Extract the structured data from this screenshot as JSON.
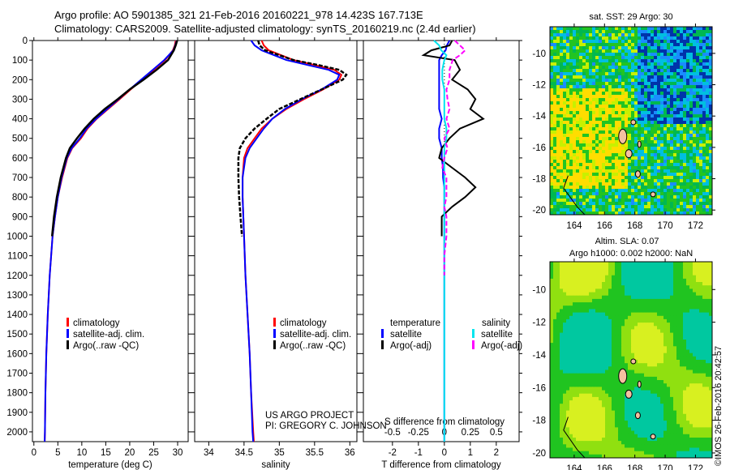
{
  "title": {
    "line1": "Argo profile: AO 5901385_321 21-Feb-2016 20160221_978 14.423S 167.713E",
    "line2": "Climatology: CARS2009. Satellite-adjusted climatology: synTS_20160219.nc (2.4d earlier)"
  },
  "credit": "©IMOS 26-Feb-2016 20:42:57",
  "project": {
    "line1": "US ARGO PROJECT",
    "line2": "PI: GREGORY C. JOHNSON"
  },
  "colors": {
    "climatology": "#ff0000",
    "satellite": "#0000ff",
    "argo": "#000000",
    "sal_satellite": "#00e5ee",
    "sal_argo": "#ff00ff"
  },
  "chart_data": [
    {
      "type": "line",
      "name": "temperature",
      "xlabel": "temperature (deg C)",
      "ylabel": "",
      "xlim": [
        -0.3,
        32.2
      ],
      "ylim": [
        2050,
        0
      ],
      "xticks": [
        0,
        5,
        10,
        15,
        20,
        25,
        30
      ],
      "yticks": [
        0,
        100,
        200,
        300,
        400,
        500,
        600,
        700,
        800,
        900,
        1000,
        1100,
        1200,
        1300,
        1400,
        1500,
        1600,
        1700,
        1800,
        1900,
        2000
      ],
      "legend": [
        "climatology",
        "satellite-adj. clim.",
        "Argo(..raw -QC)"
      ],
      "depth": [
        0,
        25,
        50,
        100,
        150,
        200,
        250,
        300,
        350,
        400,
        450,
        500,
        550,
        600,
        700,
        800,
        900,
        1000,
        1200,
        1400,
        1600,
        1800,
        2000,
        2050
      ],
      "series": [
        {
          "name": "climatology",
          "values": [
            29.6,
            29.4,
            29.0,
            27.4,
            25.0,
            22.6,
            20.2,
            17.9,
            15.5,
            13.1,
            11.2,
            9.8,
            8.0,
            7.0,
            5.9,
            5.0,
            4.4,
            3.9,
            3.3,
            2.9,
            2.6,
            2.4,
            2.3,
            2.25
          ]
        },
        {
          "name": "satellite-adj. clim.",
          "values": [
            29.8,
            29.5,
            29.1,
            27.2,
            24.8,
            22.4,
            20.0,
            17.7,
            15.3,
            13.0,
            11.0,
            9.6,
            7.9,
            6.9,
            5.8,
            5.0,
            4.4,
            3.9,
            3.3,
            2.9,
            2.6,
            2.4,
            2.3,
            2.25
          ]
        },
        {
          "name": "Argo(..raw -QC)",
          "values": [
            29.9,
            29.6,
            29.2,
            28.0,
            25.6,
            22.9,
            20.0,
            17.5,
            14.8,
            12.5,
            10.6,
            9.0,
            7.5,
            6.7,
            5.6,
            4.8,
            4.2,
            3.8,
            null,
            null,
            null,
            null,
            null,
            null
          ]
        }
      ]
    },
    {
      "type": "line",
      "name": "salinity",
      "xlabel": "salinity",
      "xlim": [
        33.8,
        36.1
      ],
      "ylim": [
        2050,
        0
      ],
      "xticks": [
        34,
        34.5,
        35,
        35.5,
        36
      ],
      "legend": [
        "climatology",
        "satellite-adj. clim.",
        "Argo(..raw -QC)"
      ],
      "depth": [
        0,
        25,
        50,
        100,
        125,
        150,
        175,
        200,
        250,
        300,
        350,
        400,
        450,
        500,
        550,
        600,
        700,
        800,
        900,
        1000,
        1200,
        1400,
        1600,
        1800,
        2000,
        2050
      ],
      "series": [
        {
          "name": "climatology",
          "values": [
            34.75,
            34.78,
            34.85,
            35.2,
            35.5,
            35.78,
            35.88,
            35.85,
            35.62,
            35.35,
            35.1,
            34.9,
            34.75,
            34.65,
            34.55,
            34.5,
            34.48,
            34.48,
            34.49,
            34.5,
            34.52,
            34.55,
            34.58,
            34.6,
            34.63,
            34.64
          ]
        },
        {
          "name": "satellite-adj. clim.",
          "values": [
            34.6,
            34.65,
            34.75,
            35.1,
            35.4,
            35.7,
            35.85,
            35.82,
            35.6,
            35.32,
            35.08,
            34.9,
            34.78,
            34.68,
            34.58,
            34.52,
            34.48,
            34.48,
            34.49,
            34.5,
            34.52,
            34.55,
            34.58,
            34.6,
            34.62,
            34.63
          ]
        },
        {
          "name": "Argo(..raw -QC)",
          "values": [
            34.7,
            34.72,
            34.8,
            35.2,
            35.55,
            35.85,
            35.95,
            35.9,
            35.6,
            35.3,
            35.0,
            34.82,
            34.65,
            34.52,
            34.44,
            34.42,
            34.42,
            34.43,
            34.45,
            34.47,
            null,
            null,
            null,
            null,
            null,
            null
          ]
        }
      ]
    },
    {
      "type": "line",
      "name": "difference",
      "xlabel": "T difference from climatology",
      "x2label": "S difference from climatology",
      "xlim": [
        -3.12,
        2.88
      ],
      "ylim": [
        2050,
        0
      ],
      "xticks": [
        -2,
        -1,
        0,
        1,
        2
      ],
      "x2ticks": [
        -0.5,
        -0.25,
        0,
        0.25,
        0.5
      ],
      "legend_groups": [
        {
          "title": "temperature",
          "items": [
            "satellite",
            "Argo(-adj)"
          ]
        },
        {
          "title": "salinity",
          "items": [
            "satellite",
            "Argo(-adj)"
          ]
        }
      ],
      "depth": [
        0,
        25,
        50,
        75,
        100,
        150,
        200,
        250,
        300,
        350,
        400,
        450,
        500,
        550,
        600,
        650,
        700,
        750,
        800,
        850,
        900,
        1000,
        1100,
        1200,
        1400,
        1600,
        1800,
        2000,
        2050
      ],
      "series": [
        {
          "name": "T satellite",
          "values": [
            0.2,
            0.1,
            0.05,
            -0.1,
            -0.2,
            -0.2,
            -0.2,
            -0.2,
            -0.2,
            -0.2,
            -0.1,
            -0.2,
            -0.2,
            -0.1,
            -0.1,
            -0.05,
            -0.05,
            0,
            0,
            0,
            0,
            0,
            0,
            0,
            0,
            0,
            0,
            0,
            0
          ]
        },
        {
          "name": "T Argo(-adj)",
          "values": [
            0.3,
            0.2,
            -0.5,
            -0.8,
            0.4,
            0.6,
            0.3,
            0.9,
            1.2,
            1.0,
            1.5,
            0.6,
            0.2,
            -0.1,
            -0.2,
            0.3,
            0.8,
            1.2,
            0.8,
            0.3,
            -0.1,
            -0.1,
            null,
            null,
            null,
            null,
            null,
            null,
            null
          ]
        },
        {
          "name": "S satellite",
          "values": [
            -0.1,
            -0.05,
            -0.03,
            0.02,
            0.0,
            -0.02,
            -0.02,
            0.0,
            0.0,
            0.0,
            0.0,
            0.02,
            0.02,
            0.0,
            0.0,
            0.0,
            0.0,
            0.0,
            0.0,
            0.0,
            0.0,
            0.0,
            0.0,
            0.0,
            0.0,
            0.0,
            0.0,
            0.0,
            0.0
          ]
        },
        {
          "name": "S Argo(-adj)",
          "values": [
            0.1,
            0.15,
            0.2,
            0.15,
            0.08,
            0.05,
            0.05,
            0.02,
            0.03,
            0.05,
            0.02,
            0.05,
            0.0,
            0.03,
            0.0,
            -0.02,
            0.02,
            0.02,
            0.02,
            0.0,
            0.02,
            0.02,
            0.0,
            0.0,
            null,
            null,
            null,
            null,
            null
          ]
        }
      ]
    },
    {
      "type": "heatmap",
      "name": "sst-map",
      "title": "sat. SST: 29 Argo: 30",
      "xlim": [
        162.4,
        173.1
      ],
      "ylim": [
        -20.3,
        -8.3
      ],
      "xticks": [
        164,
        166,
        168,
        170,
        172
      ],
      "yticks": [
        -10,
        -12,
        -14,
        -16,
        -18,
        -20
      ]
    },
    {
      "type": "heatmap",
      "name": "sla-map",
      "title1": "Altim. SLA: 0.07",
      "title2": "Argo h1000: 0.002 h2000: NaN",
      "xlim": [
        162.4,
        173.1
      ],
      "ylim": [
        -20.3,
        -8.3
      ],
      "xticks": [
        164,
        166,
        168,
        170,
        172
      ],
      "yticks": [
        -10,
        -12,
        -14,
        -16,
        -18,
        -20
      ]
    }
  ]
}
